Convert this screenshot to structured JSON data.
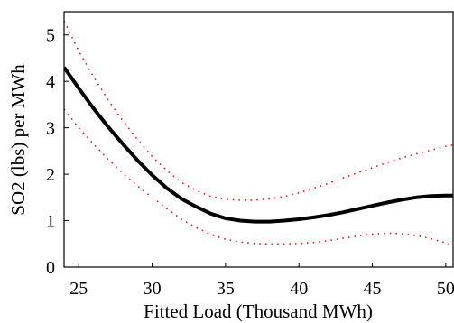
{
  "chart_data": {
    "type": "line",
    "title": "",
    "xlabel": "Fitted Load (Thousand MWh)",
    "ylabel": "SO2 (lbs) per MWh",
    "xlim": [
      24,
      50.5
    ],
    "ylim": [
      0,
      5.5
    ],
    "xticks": [
      25,
      30,
      35,
      40,
      45,
      50
    ],
    "xtick_labels": [
      "25",
      "30",
      "35",
      "40",
      "45",
      "50"
    ],
    "yticks": [
      0,
      1,
      2,
      3,
      4,
      5
    ],
    "ytick_labels": [
      "0",
      "1",
      "2",
      "3",
      "4",
      "5"
    ],
    "grid": false,
    "legend": "none",
    "series": [
      {
        "role": "fit",
        "style": "solid",
        "color": "#000000",
        "x": [
          24,
          25,
          26,
          27,
          28,
          29,
          30,
          31,
          32,
          33,
          34,
          35,
          36,
          37,
          38,
          39,
          40,
          41,
          42,
          43,
          44,
          45,
          46,
          47,
          48,
          49,
          50,
          50.5
        ],
        "values": [
          4.3,
          3.85,
          3.42,
          3.02,
          2.65,
          2.3,
          1.98,
          1.7,
          1.47,
          1.3,
          1.15,
          1.05,
          1.0,
          0.98,
          0.98,
          1.0,
          1.03,
          1.07,
          1.12,
          1.18,
          1.25,
          1.32,
          1.39,
          1.45,
          1.5,
          1.53,
          1.54,
          1.54
        ]
      },
      {
        "role": "upper-bound",
        "style": "dotted",
        "color": "#e0201c",
        "x": [
          24,
          25,
          26,
          27,
          28,
          29,
          30,
          31,
          32,
          33,
          34,
          35,
          36,
          37,
          38,
          39,
          40,
          41,
          42,
          43,
          44,
          45,
          46,
          47,
          48,
          49,
          50,
          50.5
        ],
        "values": [
          5.3,
          4.65,
          4.1,
          3.6,
          3.15,
          2.75,
          2.38,
          2.08,
          1.82,
          1.65,
          1.52,
          1.46,
          1.44,
          1.44,
          1.47,
          1.52,
          1.6,
          1.7,
          1.8,
          1.92,
          2.03,
          2.14,
          2.25,
          2.35,
          2.44,
          2.52,
          2.6,
          2.63
        ]
      },
      {
        "role": "lower-bound",
        "style": "dotted",
        "color": "#e0201c",
        "x": [
          24,
          25,
          26,
          27,
          28,
          29,
          30,
          31,
          32,
          33,
          34,
          35,
          36,
          37,
          38,
          39,
          40,
          41,
          42,
          43,
          44,
          45,
          46,
          47,
          48,
          49,
          50,
          50.5
        ],
        "values": [
          3.4,
          3.0,
          2.65,
          2.32,
          2.02,
          1.75,
          1.5,
          1.26,
          1.03,
          0.85,
          0.7,
          0.6,
          0.54,
          0.51,
          0.5,
          0.5,
          0.51,
          0.53,
          0.57,
          0.62,
          0.67,
          0.71,
          0.73,
          0.72,
          0.68,
          0.61,
          0.52,
          0.47
        ]
      }
    ]
  }
}
